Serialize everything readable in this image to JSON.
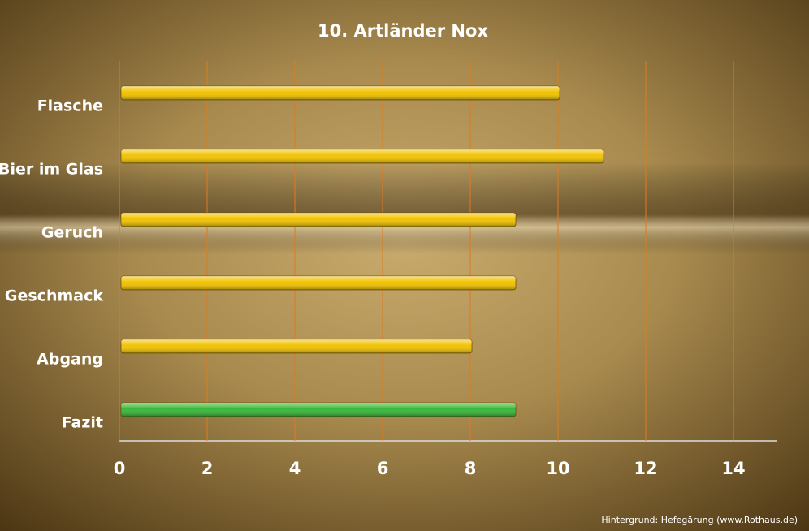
{
  "chart_data": {
    "type": "barh",
    "title": "10. Artländer Nox",
    "categories": [
      "Flasche",
      "Bier im Glas",
      "Geruch",
      "Geschmack",
      "Abgang",
      "Fazit"
    ],
    "values": [
      10,
      11,
      9,
      9,
      8,
      9
    ],
    "colors": [
      "#f2c200",
      "#f2c200",
      "#f2c200",
      "#f2c200",
      "#f2c200",
      "#38b838"
    ],
    "xlim": [
      0,
      15
    ],
    "xticks": [
      0,
      2,
      4,
      6,
      8,
      10,
      12,
      14
    ],
    "grid": true,
    "source": "Hintergrund: Hefegärung (www.Rothaus.de)"
  }
}
